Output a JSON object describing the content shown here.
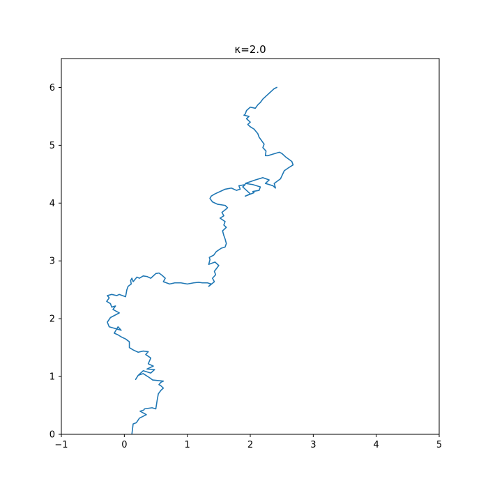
{
  "chart_data": {
    "type": "line",
    "title": "κ=2.0",
    "xlabel": "",
    "ylabel": "",
    "xlim": [
      -1,
      5
    ],
    "ylim": [
      0,
      6.5
    ],
    "x_ticks": [
      -1,
      0,
      1,
      2,
      3,
      4,
      5
    ],
    "x_tick_labels": [
      "−1",
      "0",
      "1",
      "2",
      "3",
      "4",
      "5"
    ],
    "y_ticks": [
      0,
      1,
      2,
      3,
      4,
      5,
      6
    ],
    "y_tick_labels": [
      "0",
      "1",
      "2",
      "3",
      "4",
      "5",
      "6"
    ],
    "grid": false,
    "legend": "none",
    "series": [
      {
        "color": "#1f77b4",
        "x": [
          0.12,
          0.14,
          0.19,
          0.24,
          0.35,
          0.25,
          0.31,
          0.32,
          0.44,
          0.5,
          0.52,
          0.54,
          0.58,
          0.62,
          0.58,
          0.55,
          0.58,
          0.62,
          0.45,
          0.4,
          0.3,
          0.22,
          0.18,
          0.22,
          0.3,
          0.42,
          0.48,
          0.36,
          0.46,
          0.38,
          0.42,
          0.34,
          0.38,
          0.3,
          0.22,
          0.14,
          0.08,
          0.08,
          0.02,
          -0.04,
          -0.1,
          -0.16,
          -0.1,
          -0.05,
          -0.24,
          -0.27,
          -0.22,
          -0.08,
          -0.18,
          -0.14,
          -0.2,
          -0.22,
          -0.28,
          -0.24,
          -0.27,
          -0.2,
          -0.12,
          -0.08,
          0.02,
          0.03,
          0.04,
          0.06,
          0.11,
          0.1,
          0.12,
          0.14,
          0.17,
          0.2,
          0.24,
          0.3,
          0.36,
          0.42,
          0.5,
          0.55,
          0.6,
          0.65,
          0.62,
          0.72,
          0.8,
          0.9,
          1.0,
          1.1,
          1.18,
          1.24,
          1.32,
          1.38,
          1.34,
          1.43,
          1.4,
          1.45,
          1.43,
          1.5,
          1.44,
          1.34,
          1.36,
          1.35,
          1.42,
          1.46,
          1.54,
          1.6,
          1.62,
          1.6,
          1.58,
          1.56,
          1.62,
          1.58,
          1.6,
          1.52,
          1.58,
          1.55,
          1.62,
          1.64,
          1.6,
          1.48,
          1.4,
          1.36,
          1.38,
          1.44,
          1.52,
          1.6,
          1.7,
          1.78,
          1.84,
          1.82,
          1.92,
          1.88,
          1.94,
          2.0,
          1.92,
          2.06,
          2.04,
          2.14,
          2.16,
          2.04,
          1.92,
          2.08,
          2.2,
          2.3,
          2.24,
          2.36,
          2.4,
          2.38,
          2.48,
          2.54,
          2.62,
          2.68,
          2.66,
          2.56,
          2.5,
          2.46,
          2.4,
          2.34,
          2.28,
          2.24,
          2.25,
          2.2,
          2.22,
          2.18,
          2.14,
          2.12,
          2.06,
          2.0,
          1.96,
          2.0,
          1.94,
          1.98,
          1.9,
          1.92,
          1.94,
          2.0,
          2.08,
          2.12,
          2.16,
          2.2,
          2.26,
          2.3,
          2.34,
          2.38,
          2.42
        ],
        "y": [
          0.0,
          0.18,
          0.2,
          0.28,
          0.34,
          0.4,
          0.42,
          0.44,
          0.46,
          0.44,
          0.58,
          0.7,
          0.76,
          0.8,
          0.84,
          0.86,
          0.9,
          0.92,
          0.94,
          0.98,
          1.05,
          1.02,
          0.95,
          1.02,
          1.1,
          1.06,
          1.12,
          1.13,
          1.18,
          1.22,
          1.32,
          1.38,
          1.43,
          1.44,
          1.42,
          1.46,
          1.5,
          1.6,
          1.65,
          1.68,
          1.72,
          1.75,
          1.86,
          1.8,
          1.86,
          1.94,
          2.02,
          2.1,
          2.16,
          2.22,
          2.2,
          2.26,
          2.3,
          2.36,
          2.4,
          2.42,
          2.4,
          2.42,
          2.38,
          2.44,
          2.5,
          2.56,
          2.6,
          2.66,
          2.7,
          2.64,
          2.68,
          2.72,
          2.7,
          2.74,
          2.73,
          2.7,
          2.78,
          2.79,
          2.75,
          2.7,
          2.64,
          2.6,
          2.62,
          2.62,
          2.6,
          2.62,
          2.63,
          2.62,
          2.62,
          2.6,
          2.56,
          2.64,
          2.7,
          2.76,
          2.82,
          2.92,
          2.98,
          2.94,
          3.02,
          3.06,
          3.1,
          3.16,
          3.22,
          3.24,
          3.3,
          3.38,
          3.44,
          3.52,
          3.58,
          3.62,
          3.68,
          3.74,
          3.78,
          3.84,
          3.9,
          3.92,
          3.96,
          3.98,
          4.02,
          4.08,
          4.12,
          4.16,
          4.2,
          4.24,
          4.26,
          4.22,
          4.24,
          4.3,
          4.32,
          4.28,
          4.22,
          4.16,
          4.12,
          4.18,
          4.2,
          4.22,
          4.28,
          4.32,
          4.34,
          4.4,
          4.44,
          4.4,
          4.34,
          4.3,
          4.26,
          4.34,
          4.42,
          4.56,
          4.62,
          4.66,
          4.72,
          4.8,
          4.86,
          4.88,
          4.86,
          4.84,
          4.82,
          4.82,
          4.9,
          4.96,
          5.02,
          5.08,
          5.14,
          5.2,
          5.28,
          5.32,
          5.36,
          5.4,
          5.46,
          5.5,
          5.52,
          5.54,
          5.6,
          5.66,
          5.64,
          5.7,
          5.74,
          5.8,
          5.86,
          5.9,
          5.94,
          5.98,
          6.0
        ]
      }
    ]
  }
}
